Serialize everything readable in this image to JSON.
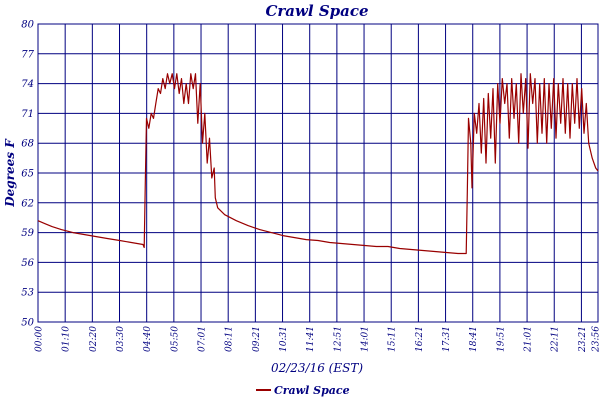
{
  "chart_data": {
    "type": "line",
    "title": "Crawl Space",
    "xlabel": "02/23/16 (EST)",
    "ylabel": "Degrees F",
    "ylim": [
      50,
      80
    ],
    "y_ticks": [
      "80",
      "77",
      "74",
      "71",
      "68",
      "65",
      "62",
      "59",
      "56",
      "53",
      "50"
    ],
    "x_range_hours": [
      0,
      24
    ],
    "x_ticks": [
      "00:00",
      "01:10",
      "02:20",
      "03:30",
      "04:40",
      "05:50",
      "07:01",
      "08:11",
      "09:21",
      "10:31",
      "11:41",
      "12:51",
      "14:01",
      "15:11",
      "16:21",
      "17:31",
      "18:41",
      "19:51",
      "21:01",
      "22:11",
      "23:21",
      "23:56"
    ],
    "grid": true,
    "legend_position": "bottom-left",
    "series": [
      {
        "name": "Crawl Space",
        "color": "#990000",
        "points": [
          [
            0.0,
            60.2
          ],
          [
            0.3,
            59.9
          ],
          [
            0.6,
            59.6
          ],
          [
            1.0,
            59.3
          ],
          [
            1.5,
            59.0
          ],
          [
            2.0,
            58.8
          ],
          [
            2.5,
            58.6
          ],
          [
            3.0,
            58.4
          ],
          [
            3.5,
            58.2
          ],
          [
            4.0,
            58.0
          ],
          [
            4.5,
            57.8
          ],
          [
            4.55,
            57.5
          ],
          [
            4.6,
            64.0
          ],
          [
            4.65,
            70.5
          ],
          [
            4.75,
            69.5
          ],
          [
            4.85,
            71.0
          ],
          [
            4.95,
            70.5
          ],
          [
            5.05,
            72.0
          ],
          [
            5.15,
            73.5
          ],
          [
            5.25,
            73.0
          ],
          [
            5.35,
            74.5
          ],
          [
            5.45,
            73.5
          ],
          [
            5.55,
            75.0
          ],
          [
            5.65,
            74.0
          ],
          [
            5.75,
            75.0
          ],
          [
            5.85,
            73.5
          ],
          [
            5.95,
            75.0
          ],
          [
            6.05,
            73.0
          ],
          [
            6.15,
            74.5
          ],
          [
            6.25,
            72.0
          ],
          [
            6.35,
            74.0
          ],
          [
            6.45,
            72.0
          ],
          [
            6.55,
            75.0
          ],
          [
            6.65,
            73.5
          ],
          [
            6.75,
            75.0
          ],
          [
            6.85,
            70.0
          ],
          [
            6.95,
            74.0
          ],
          [
            7.05,
            68.0
          ],
          [
            7.15,
            71.0
          ],
          [
            7.25,
            66.0
          ],
          [
            7.35,
            68.5
          ],
          [
            7.45,
            64.5
          ],
          [
            7.55,
            65.5
          ],
          [
            7.6,
            62.5
          ],
          [
            7.7,
            61.5
          ],
          [
            8.0,
            60.8
          ],
          [
            8.5,
            60.2
          ],
          [
            9.0,
            59.7
          ],
          [
            9.5,
            59.3
          ],
          [
            10.0,
            59.0
          ],
          [
            10.5,
            58.7
          ],
          [
            11.0,
            58.5
          ],
          [
            11.5,
            58.3
          ],
          [
            12.0,
            58.2
          ],
          [
            12.5,
            58.0
          ],
          [
            13.0,
            57.9
          ],
          [
            13.5,
            57.8
          ],
          [
            14.0,
            57.7
          ],
          [
            14.5,
            57.6
          ],
          [
            15.0,
            57.6
          ],
          [
            15.5,
            57.4
          ],
          [
            16.0,
            57.3
          ],
          [
            16.5,
            57.2
          ],
          [
            17.0,
            57.1
          ],
          [
            17.5,
            57.0
          ],
          [
            18.0,
            56.9
          ],
          [
            18.35,
            56.9
          ],
          [
            18.4,
            63.0
          ],
          [
            18.45,
            70.5
          ],
          [
            18.55,
            68.0
          ],
          [
            18.6,
            63.5
          ],
          [
            18.7,
            71.0
          ],
          [
            18.8,
            69.0
          ],
          [
            18.9,
            72.0
          ],
          [
            19.0,
            67.0
          ],
          [
            19.1,
            72.5
          ],
          [
            19.2,
            66.0
          ],
          [
            19.3,
            73.0
          ],
          [
            19.4,
            68.5
          ],
          [
            19.5,
            73.5
          ],
          [
            19.6,
            66.0
          ],
          [
            19.7,
            74.0
          ],
          [
            19.8,
            70.0
          ],
          [
            19.9,
            74.5
          ],
          [
            20.0,
            72.0
          ],
          [
            20.1,
            74.0
          ],
          [
            20.2,
            68.5
          ],
          [
            20.3,
            74.5
          ],
          [
            20.4,
            70.5
          ],
          [
            20.5,
            74.0
          ],
          [
            20.6,
            68.0
          ],
          [
            20.7,
            75.0
          ],
          [
            20.8,
            71.0
          ],
          [
            20.9,
            74.5
          ],
          [
            21.0,
            67.5
          ],
          [
            21.1,
            75.0
          ],
          [
            21.2,
            72.0
          ],
          [
            21.3,
            74.5
          ],
          [
            21.4,
            68.0
          ],
          [
            21.5,
            74.0
          ],
          [
            21.6,
            69.0
          ],
          [
            21.7,
            74.5
          ],
          [
            21.8,
            68.0
          ],
          [
            21.9,
            74.0
          ],
          [
            22.0,
            69.5
          ],
          [
            22.1,
            74.5
          ],
          [
            22.2,
            68.5
          ],
          [
            22.3,
            74.0
          ],
          [
            22.4,
            70.0
          ],
          [
            22.5,
            74.5
          ],
          [
            22.6,
            69.0
          ],
          [
            22.7,
            74.0
          ],
          [
            22.8,
            68.5
          ],
          [
            22.9,
            74.0
          ],
          [
            23.0,
            70.0
          ],
          [
            23.1,
            74.5
          ],
          [
            23.2,
            69.5
          ],
          [
            23.3,
            73.5
          ],
          [
            23.4,
            69.0
          ],
          [
            23.5,
            72.0
          ],
          [
            23.6,
            68.0
          ],
          [
            23.75,
            66.5
          ],
          [
            23.9,
            65.5
          ],
          [
            24.0,
            65.2
          ]
        ]
      }
    ]
  }
}
